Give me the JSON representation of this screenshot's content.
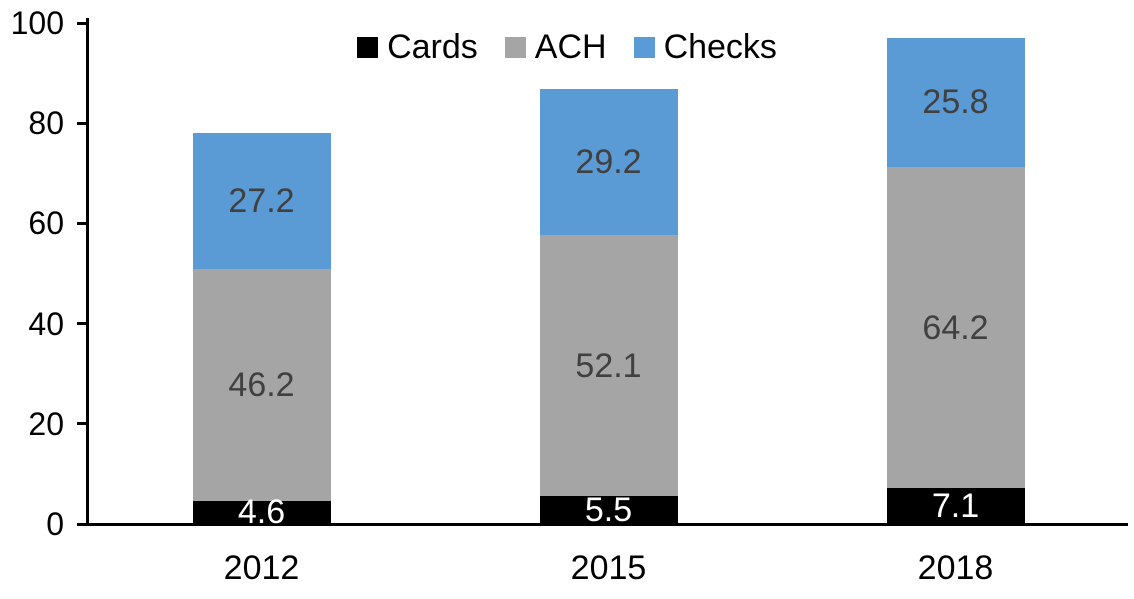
{
  "chart_data": {
    "type": "bar",
    "stacked": true,
    "title": "",
    "xlabel": "",
    "ylabel": "",
    "categories": [
      "2012",
      "2015",
      "2018"
    ],
    "series": [
      {
        "name": "Cards",
        "color": "#000000",
        "label_color": "#FFFFFF",
        "values": [
          4.6,
          5.5,
          7.1
        ]
      },
      {
        "name": "ACH",
        "color": "#A5A5A5",
        "label_color": "#404040",
        "values": [
          46.2,
          52.1,
          64.2
        ]
      },
      {
        "name": "Checks",
        "color": "#5B9BD5",
        "label_color": "#404040",
        "values": [
          27.2,
          29.2,
          25.8
        ]
      }
    ],
    "stack_totals": [
      78.0,
      86.8,
      97.1
    ],
    "ylim": [
      0,
      100
    ],
    "y_ticks": [
      0,
      20,
      40,
      60,
      80,
      100
    ],
    "grid": false,
    "legend_position": "top-center",
    "axis_color": "#000000",
    "text_color": "#000000"
  }
}
